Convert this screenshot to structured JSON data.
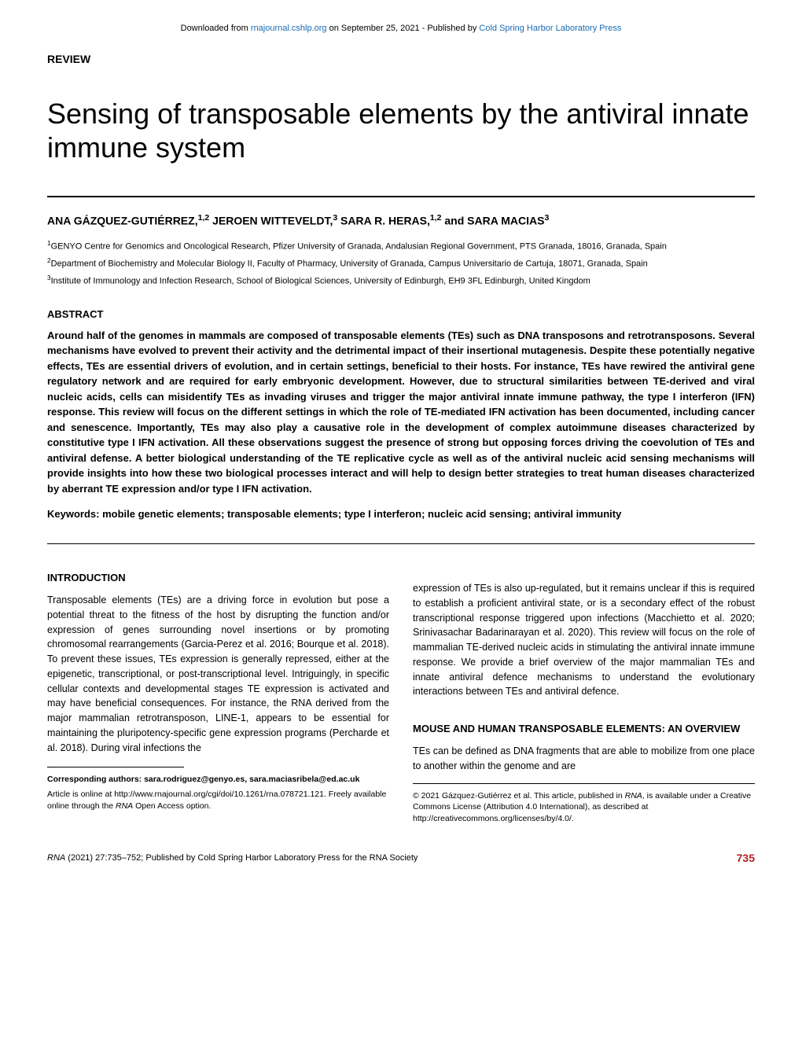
{
  "banner": {
    "prefix": "Downloaded from ",
    "link1_text": "rnajournal.cshlp.org",
    "middle": " on September 25, 2021 - Published by ",
    "link2_text": "Cold Spring Harbor Laboratory Press"
  },
  "review_label": "REVIEW",
  "title": "Sensing of transposable elements by the antiviral innate immune system",
  "authors_html": "ANA GÁZQUEZ-GUTIÉRREZ,<sup>1,2</sup> JEROEN WITTEVELDT,<sup>3</sup> SARA R. HERAS,<sup>1,2</sup> and SARA MACIAS<sup>3</sup>",
  "affiliations": [
    "<sup>1</sup>GENYO Centre for Genomics and Oncological Research, Pfizer University of Granada, Andalusian Regional Government, PTS Granada, 18016, Granada, Spain",
    "<sup>2</sup>Department of Biochemistry and Molecular Biology II, Faculty of Pharmacy, University of Granada, Campus Universitario de Cartuja, 18071, Granada, Spain",
    "<sup>3</sup>Institute of Immunology and Infection Research, School of Biological Sciences, University of Edinburgh, EH9 3FL Edinburgh, United Kingdom"
  ],
  "abstract": {
    "heading": "ABSTRACT",
    "text": "Around half of the genomes in mammals are composed of transposable elements (TEs) such as DNA transposons and retrotransposons. Several mechanisms have evolved to prevent their activity and the detrimental impact of their insertional mutagenesis. Despite these potentially negative effects, TEs are essential drivers of evolution, and in certain settings, beneficial to their hosts. For instance, TEs have rewired the antiviral gene regulatory network and are required for early embryonic development. However, due to structural similarities between TE-derived and viral nucleic acids, cells can misidentify TEs as invading viruses and trigger the major antiviral innate immune pathway, the type I interferon (IFN) response. This review will focus on the different settings in which the role of TE-mediated IFN activation has been documented, including cancer and senescence. Importantly, TEs may also play a causative role in the development of complex autoimmune diseases characterized by constitutive type I IFN activation. All these observations suggest the presence of strong but opposing forces driving the coevolution of TEs and antiviral defense. A better biological understanding of the TE replicative cycle as well as of the antiviral nucleic acid sensing mechanisms will provide insights into how these two biological processes interact and will help to design better strategies to treat human diseases characterized by aberrant TE expression and/or type I IFN activation."
  },
  "keywords": "Keywords:  mobile genetic elements; transposable elements; type I interferon; nucleic acid sensing; antiviral immunity",
  "intro": {
    "heading": "INTRODUCTION",
    "para": "Transposable elements (TEs) are a driving force in evolution but pose a potential threat to the fitness of the host by disrupting the function and/or expression of genes surrounding novel insertions or by promoting chromosomal rearrangements (Garcia-Perez et al. 2016; Bourque et al. 2018). To prevent these issues, TEs expression is generally repressed, either at the epigenetic, transcriptional, or post-transcriptional level. Intriguingly, in specific cellular contexts and developmental stages TE expression is activated and may have beneficial consequences. For instance, the RNA derived from the major mammalian retrotransposon, LINE-1, appears to be essential for maintaining the pluripotency-specific gene expression programs (Percharde et al. 2018). During viral infections the"
  },
  "right_col": {
    "para1": "expression of TEs is also up-regulated, but it remains unclear if this is required to establish a proficient antiviral state, or is a secondary effect of the robust transcriptional response triggered upon infections (Macchietto et al. 2020; Srinivasachar Badarinarayan et al. 2020). This review will focus on the role of mammalian TE-derived nucleic acids in stimulating the antiviral innate immune response. We provide a brief overview of the major mammalian TEs and innate antiviral defence mechanisms to understand the evolutionary interactions between TEs and antiviral defence.",
    "heading": "MOUSE AND HUMAN TRANSPOSABLE ELEMENTS: AN OVERVIEW",
    "para2": "TEs can be defined as DNA fragments that are able to mobilize from one place to another within the genome and are"
  },
  "footnotes": {
    "corresponding": "Corresponding authors: sara.rodriguez@genyo.es, sara.maciasribela@ed.ac.uk",
    "article_online": "Article is online at http://www.rnajournal.org/cgi/doi/10.1261/rna.078721.121. Freely available online through the <i>RNA</i> Open Access option.",
    "copyright": "© 2021 Gázquez-Gutiérrez et al. This article, published in <i>RNA</i>, is available under a Creative Commons License (Attribution 4.0 International), as described at http://creativecommons.org/licenses/by/4.0/."
  },
  "footer": {
    "journal": "RNA",
    "citation": " (2021) 27:735–752; Published by Cold Spring Harbor Laboratory Press for the RNA Society",
    "page": "735"
  },
  "colors": {
    "link": "#1a6bb3",
    "page_num": "#b22222",
    "text": "#000000",
    "bg": "#ffffff"
  }
}
